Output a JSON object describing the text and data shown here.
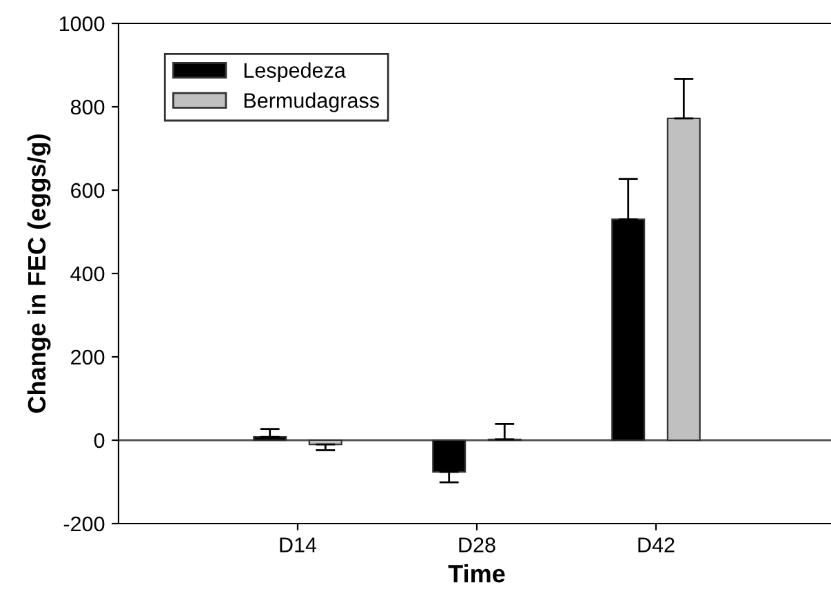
{
  "chart_data": {
    "type": "bar",
    "xlabel": "Time",
    "ylabel": "Change in FEC (eggs/g)",
    "categories": [
      "D14",
      "D28",
      "D42"
    ],
    "series": [
      {
        "name": "Lespedeza",
        "color": "#000000",
        "values": [
          8,
          -76,
          530
        ],
        "errors": [
          [
            8,
            27
          ],
          [
            -101,
            -76
          ],
          [
            530,
            627
          ]
        ]
      },
      {
        "name": "Bermudagrass",
        "color": "#c0c0c0",
        "values": [
          -10,
          2,
          772
        ],
        "errors": [
          [
            -24,
            -10
          ],
          [
            2,
            39
          ],
          [
            772,
            867
          ]
        ]
      }
    ],
    "ylim": [
      -200,
      1000
    ],
    "yticks": [
      -200,
      0,
      200,
      400,
      600,
      800,
      1000
    ],
    "ref_lines": [
      {
        "axis": "y",
        "value": 0
      }
    ],
    "grid": false,
    "legend": "top left"
  }
}
